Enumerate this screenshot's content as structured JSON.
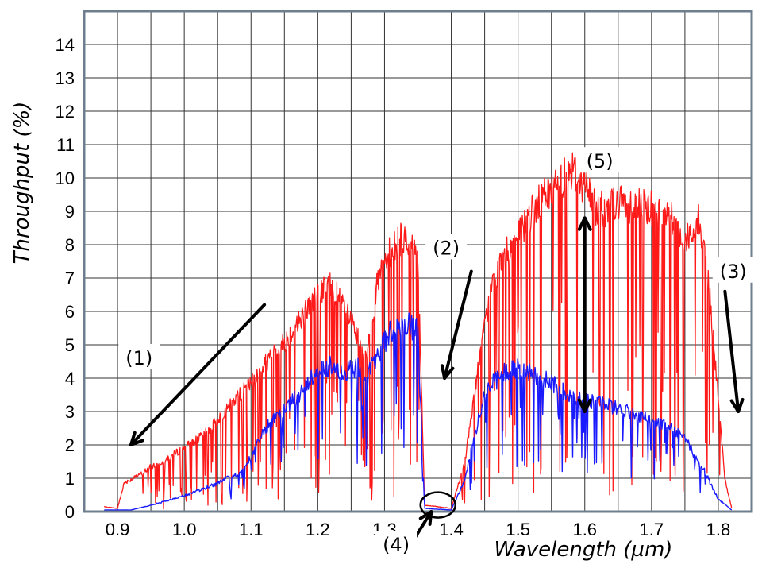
{
  "chart_data": {
    "type": "line",
    "xlabel": "Wavelength (µm)",
    "ylabel": "Throughput (%)",
    "xlim": [
      0.85,
      1.85
    ],
    "ylim": [
      0,
      15
    ],
    "x_ticks": [
      0.9,
      1.0,
      1.1,
      1.2,
      1.3,
      1.4,
      1.5,
      1.6,
      1.7,
      1.8
    ],
    "y_ticks": [
      0,
      1,
      2,
      3,
      4,
      5,
      6,
      7,
      8,
      9,
      10,
      11,
      12,
      13,
      14
    ],
    "grid": true,
    "series": [
      {
        "color": "#ff1a1a",
        "points": [
          [
            0.88,
            0.15
          ],
          [
            0.9,
            0.1
          ],
          [
            0.91,
            0.9
          ],
          [
            0.93,
            1.1
          ],
          [
            0.95,
            1.4
          ],
          [
            0.97,
            1.6
          ],
          [
            1.0,
            2.0
          ],
          [
            1.03,
            2.4
          ],
          [
            1.06,
            3.1
          ],
          [
            1.08,
            3.6
          ],
          [
            1.1,
            4.0
          ],
          [
            1.12,
            4.6
          ],
          [
            1.15,
            5.3
          ],
          [
            1.18,
            6.2
          ],
          [
            1.2,
            6.8
          ],
          [
            1.22,
            7.1
          ],
          [
            1.24,
            6.4
          ],
          [
            1.26,
            5.4
          ],
          [
            1.27,
            4.6
          ],
          [
            1.29,
            7.2
          ],
          [
            1.31,
            8.2
          ],
          [
            1.33,
            8.6
          ],
          [
            1.35,
            8.0
          ],
          [
            1.36,
            0.2
          ],
          [
            1.4,
            0.1
          ],
          [
            1.42,
            1.5
          ],
          [
            1.44,
            4.5
          ],
          [
            1.46,
            7.0
          ],
          [
            1.48,
            8.0
          ],
          [
            1.5,
            8.6
          ],
          [
            1.53,
            9.6
          ],
          [
            1.56,
            10.3
          ],
          [
            1.58,
            10.7
          ],
          [
            1.6,
            10.2
          ],
          [
            1.62,
            9.4
          ],
          [
            1.65,
            9.6
          ],
          [
            1.68,
            9.6
          ],
          [
            1.7,
            9.5
          ],
          [
            1.73,
            9.2
          ],
          [
            1.75,
            8.4
          ],
          [
            1.77,
            9.1
          ],
          [
            1.78,
            8.3
          ],
          [
            1.79,
            6.0
          ],
          [
            1.8,
            3.5
          ],
          [
            1.81,
            1.0
          ],
          [
            1.82,
            0.1
          ]
        ]
      },
      {
        "color": "#1a1aff",
        "points": [
          [
            0.88,
            0.05
          ],
          [
            0.92,
            0.05
          ],
          [
            0.95,
            0.2
          ],
          [
            1.0,
            0.5
          ],
          [
            1.05,
            0.9
          ],
          [
            1.08,
            1.2
          ],
          [
            1.1,
            1.7
          ],
          [
            1.12,
            2.6
          ],
          [
            1.15,
            3.2
          ],
          [
            1.18,
            3.9
          ],
          [
            1.2,
            4.5
          ],
          [
            1.22,
            4.6
          ],
          [
            1.24,
            4.4
          ],
          [
            1.26,
            4.6
          ],
          [
            1.27,
            4.0
          ],
          [
            1.29,
            5.0
          ],
          [
            1.31,
            5.7
          ],
          [
            1.33,
            5.9
          ],
          [
            1.35,
            5.7
          ],
          [
            1.36,
            0.1
          ],
          [
            1.4,
            0.05
          ],
          [
            1.42,
            1.0
          ],
          [
            1.45,
            3.8
          ],
          [
            1.48,
            4.4
          ],
          [
            1.5,
            4.5
          ],
          [
            1.53,
            4.3
          ],
          [
            1.56,
            3.9
          ],
          [
            1.6,
            3.5
          ],
          [
            1.63,
            3.4
          ],
          [
            1.66,
            3.2
          ],
          [
            1.7,
            2.9
          ],
          [
            1.73,
            2.6
          ],
          [
            1.75,
            2.4
          ],
          [
            1.77,
            1.5
          ],
          [
            1.78,
            1.3
          ],
          [
            1.79,
            0.8
          ],
          [
            1.8,
            0.4
          ],
          [
            1.82,
            0.05
          ]
        ]
      }
    ],
    "annotations": [
      {
        "label": "(1)",
        "label_at": [
          0.93,
          4.5
        ],
        "arrow_from": [
          1.12,
          6.2
        ],
        "arrow_to": [
          0.92,
          2.0
        ]
      },
      {
        "label": "(2)",
        "label_at": [
          1.39,
          7.8
        ],
        "arrow_from": [
          1.43,
          7.2
        ],
        "arrow_to": [
          1.39,
          4.0
        ]
      },
      {
        "label": "(3)",
        "label_at": [
          1.82,
          7.1
        ],
        "arrow_from": [
          1.81,
          6.6
        ],
        "arrow_to": [
          1.83,
          3.0
        ]
      },
      {
        "label": "(4)",
        "label_at": [
          1.315,
          -1.1
        ],
        "arrow_from": [
          1.345,
          -0.8
        ],
        "arrow_to": [
          1.37,
          0.0
        ],
        "circle_at": [
          1.38,
          0.2
        ]
      },
      {
        "label": "(5)",
        "label_at": [
          1.62,
          10.4
        ],
        "double_arrow_from": [
          1.6,
          8.8
        ],
        "double_arrow_to": [
          1.6,
          3.0
        ]
      }
    ]
  }
}
